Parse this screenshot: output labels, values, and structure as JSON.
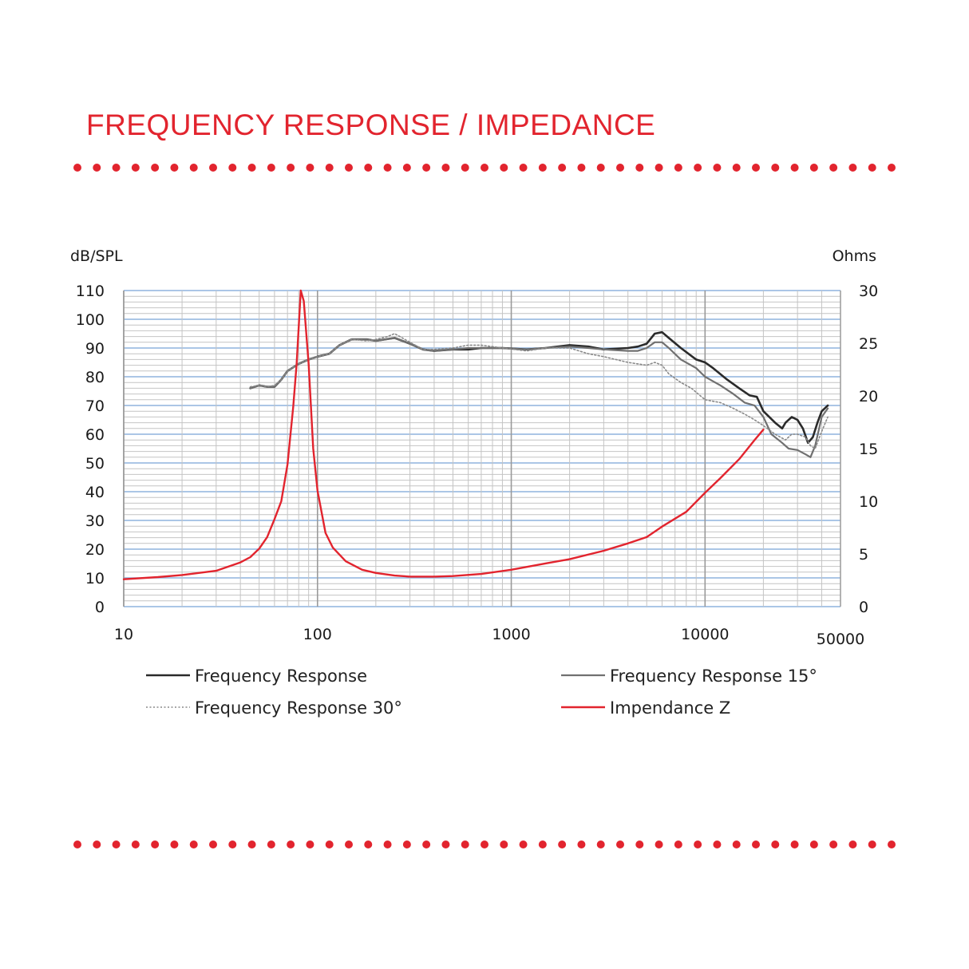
{
  "title": "FREQUENCY RESPONSE / IMPEDANCE",
  "colors": {
    "title": "#e2242e",
    "dots": "#e2242e",
    "fr": "#2a2a2a",
    "fr15": "#707070",
    "fr30": "#8a8a8a",
    "impedance": "#e2242e",
    "major_grid": "#8fb3de",
    "minor_grid": "#c4c4c4"
  },
  "chart_data": {
    "type": "line",
    "x_scale": "log",
    "xlim": [
      10,
      50000
    ],
    "x_ticks": [
      10,
      100,
      1000,
      10000,
      50000
    ],
    "x_tick_labels": [
      "10",
      "100",
      "1000",
      "10000",
      "50000"
    ],
    "ylabel_left": "dB/SPL",
    "ylabel_right": "Ohms",
    "ylim_left": [
      0,
      110
    ],
    "ylim_right": [
      0,
      30
    ],
    "y_ticks_left": [
      "0",
      "10",
      "20",
      "30",
      "40",
      "50",
      "60",
      "70",
      "80",
      "90",
      "100",
      "110"
    ],
    "y_ticks_right": [
      "0",
      "5",
      "10",
      "15",
      "20",
      "25",
      "30"
    ],
    "grid": true,
    "legend_position": "bottom",
    "series": [
      {
        "name": "Frequency Response",
        "axis": "left",
        "style": "solid-dark",
        "points": [
          [
            45,
            76
          ],
          [
            50,
            77
          ],
          [
            55,
            76.5
          ],
          [
            60,
            76.5
          ],
          [
            65,
            79
          ],
          [
            70,
            82
          ],
          [
            80,
            84.5
          ],
          [
            90,
            86
          ],
          [
            100,
            87
          ],
          [
            115,
            88
          ],
          [
            130,
            91
          ],
          [
            150,
            93
          ],
          [
            180,
            93
          ],
          [
            200,
            92.5
          ],
          [
            250,
            93.5
          ],
          [
            300,
            91.5
          ],
          [
            350,
            89.5
          ],
          [
            400,
            89
          ],
          [
            500,
            89.5
          ],
          [
            600,
            89.5
          ],
          [
            700,
            90
          ],
          [
            900,
            90
          ],
          [
            1200,
            89.5
          ],
          [
            1500,
            90
          ],
          [
            2000,
            91
          ],
          [
            2500,
            90.5
          ],
          [
            3000,
            89.5
          ],
          [
            4000,
            90
          ],
          [
            4500,
            90.5
          ],
          [
            5000,
            91.5
          ],
          [
            5500,
            95
          ],
          [
            6000,
            95.5
          ],
          [
            6500,
            93.5
          ],
          [
            7500,
            90
          ],
          [
            9000,
            86
          ],
          [
            10000,
            85
          ],
          [
            11000,
            83
          ],
          [
            13000,
            79
          ],
          [
            15000,
            76
          ],
          [
            17000,
            73.5
          ],
          [
            18500,
            73
          ],
          [
            20000,
            68
          ],
          [
            23000,
            64
          ],
          [
            25000,
            62
          ],
          [
            26000,
            64
          ],
          [
            28000,
            66
          ],
          [
            30000,
            65
          ],
          [
            32000,
            62
          ],
          [
            34000,
            57
          ],
          [
            36000,
            59
          ],
          [
            38000,
            64
          ],
          [
            40000,
            68
          ],
          [
            43000,
            70
          ]
        ]
      },
      {
        "name": "Frequency Response 15°",
        "axis": "left",
        "style": "solid-grey",
        "points": [
          [
            45,
            76
          ],
          [
            50,
            77
          ],
          [
            55,
            76.5
          ],
          [
            60,
            76.5
          ],
          [
            65,
            79
          ],
          [
            70,
            82
          ],
          [
            80,
            84.5
          ],
          [
            90,
            86
          ],
          [
            100,
            87
          ],
          [
            115,
            88
          ],
          [
            130,
            91
          ],
          [
            150,
            93
          ],
          [
            180,
            93
          ],
          [
            200,
            92.5
          ],
          [
            250,
            93.5
          ],
          [
            300,
            91.5
          ],
          [
            350,
            89.5
          ],
          [
            400,
            89
          ],
          [
            500,
            89.5
          ],
          [
            600,
            90
          ],
          [
            700,
            90
          ],
          [
            900,
            90
          ],
          [
            1200,
            89.5
          ],
          [
            1500,
            90
          ],
          [
            2000,
            90.5
          ],
          [
            2500,
            90
          ],
          [
            3000,
            89.5
          ],
          [
            4000,
            89
          ],
          [
            4500,
            89
          ],
          [
            5000,
            90
          ],
          [
            5500,
            92
          ],
          [
            6000,
            92
          ],
          [
            6500,
            90
          ],
          [
            7500,
            86
          ],
          [
            9000,
            83
          ],
          [
            10000,
            80
          ],
          [
            12000,
            77
          ],
          [
            14000,
            74
          ],
          [
            16000,
            71
          ],
          [
            18000,
            70
          ],
          [
            20000,
            66
          ],
          [
            22000,
            60
          ],
          [
            25000,
            57
          ],
          [
            27000,
            55
          ],
          [
            30000,
            54.5
          ],
          [
            33000,
            53
          ],
          [
            35000,
            52
          ],
          [
            37000,
            56
          ],
          [
            40000,
            66
          ],
          [
            43000,
            69
          ]
        ]
      },
      {
        "name": "Frequency Response 30°",
        "axis": "left",
        "style": "dotted",
        "points": [
          [
            45,
            76.5
          ],
          [
            50,
            77
          ],
          [
            55,
            76.5
          ],
          [
            60,
            77
          ],
          [
            65,
            79
          ],
          [
            70,
            82
          ],
          [
            80,
            84.5
          ],
          [
            90,
            86
          ],
          [
            100,
            87
          ],
          [
            115,
            88
          ],
          [
            130,
            91
          ],
          [
            150,
            93
          ],
          [
            180,
            92.5
          ],
          [
            200,
            93
          ],
          [
            230,
            94
          ],
          [
            250,
            95
          ],
          [
            300,
            92
          ],
          [
            350,
            89.5
          ],
          [
            400,
            89.5
          ],
          [
            500,
            90
          ],
          [
            600,
            91
          ],
          [
            700,
            91
          ],
          [
            900,
            90
          ],
          [
            1200,
            89
          ],
          [
            1500,
            90
          ],
          [
            2000,
            90
          ],
          [
            2500,
            88
          ],
          [
            3000,
            87
          ],
          [
            4000,
            85
          ],
          [
            5000,
            84
          ],
          [
            5500,
            85
          ],
          [
            6000,
            84
          ],
          [
            6500,
            81
          ],
          [
            7500,
            78
          ],
          [
            8500,
            76
          ],
          [
            10000,
            72
          ],
          [
            12000,
            71
          ],
          [
            14000,
            69
          ],
          [
            16000,
            67
          ],
          [
            18000,
            65
          ],
          [
            20000,
            63
          ],
          [
            23000,
            60
          ],
          [
            26000,
            58
          ],
          [
            28000,
            60
          ],
          [
            30000,
            60
          ],
          [
            33000,
            59
          ],
          [
            35000,
            56
          ],
          [
            37000,
            55
          ],
          [
            40000,
            61
          ],
          [
            43000,
            66
          ]
        ]
      },
      {
        "name": "Impendance Z",
        "axis": "right",
        "style": "solid-red",
        "points": [
          [
            10,
            2.6
          ],
          [
            15,
            2.8
          ],
          [
            20,
            3
          ],
          [
            30,
            3.4
          ],
          [
            40,
            4.2
          ],
          [
            45,
            4.7
          ],
          [
            50,
            5.5
          ],
          [
            55,
            6.6
          ],
          [
            60,
            8.3
          ],
          [
            65,
            10
          ],
          [
            70,
            13.5
          ],
          [
            75,
            19
          ],
          [
            78,
            23
          ],
          [
            82,
            30
          ],
          [
            85,
            29
          ],
          [
            90,
            23
          ],
          [
            95,
            15
          ],
          [
            100,
            11
          ],
          [
            110,
            7
          ],
          [
            120,
            5.6
          ],
          [
            140,
            4.3
          ],
          [
            170,
            3.5
          ],
          [
            200,
            3.2
          ],
          [
            250,
            2.95
          ],
          [
            300,
            2.85
          ],
          [
            400,
            2.85
          ],
          [
            500,
            2.9
          ],
          [
            700,
            3.1
          ],
          [
            1000,
            3.5
          ],
          [
            1500,
            4.1
          ],
          [
            2000,
            4.5
          ],
          [
            3000,
            5.3
          ],
          [
            4000,
            6
          ],
          [
            5000,
            6.6
          ],
          [
            6000,
            7.6
          ],
          [
            8000,
            9
          ],
          [
            10000,
            10.8
          ],
          [
            12000,
            12.2
          ],
          [
            15000,
            14
          ],
          [
            18000,
            15.8
          ],
          [
            20000,
            16.8
          ]
        ]
      }
    ]
  }
}
